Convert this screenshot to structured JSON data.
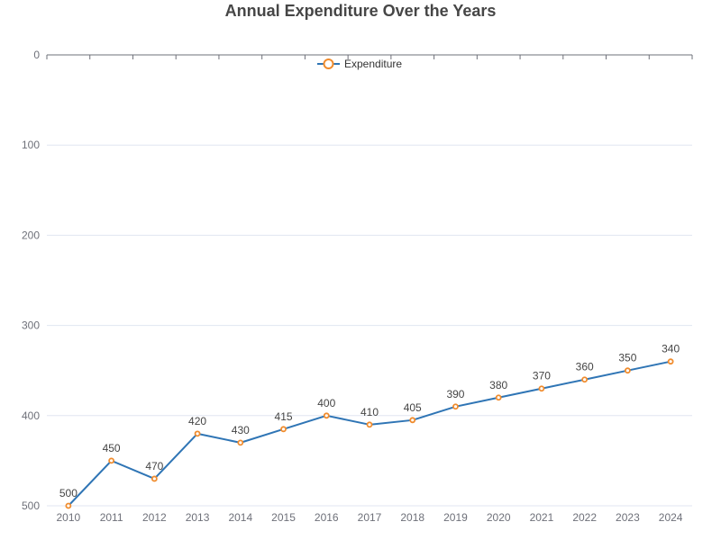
{
  "chart_data": {
    "type": "line",
    "title": "Annual Expenditure Over the Years",
    "xlabel": "",
    "ylabel": "",
    "categories": [
      "2010",
      "2011",
      "2012",
      "2013",
      "2014",
      "2015",
      "2016",
      "2017",
      "2018",
      "2019",
      "2020",
      "2021",
      "2022",
      "2023",
      "2024"
    ],
    "series": [
      {
        "name": "Expenditure",
        "values": [
          500,
          450,
          470,
          420,
          430,
          415,
          400,
          410,
          405,
          390,
          380,
          370,
          360,
          350,
          340
        ]
      }
    ],
    "ylim": [
      0,
      500
    ],
    "y_inverted": true,
    "y_ticks": [
      0,
      100,
      200,
      300,
      400,
      500
    ],
    "x_axis_position": "top",
    "grid": true,
    "legend": "top-center",
    "show_data_labels": true,
    "colors": {
      "line": "#2f75b5",
      "marker": "#f08c2e",
      "grid": "#e0e6f1",
      "axis": "#6e7079"
    }
  }
}
